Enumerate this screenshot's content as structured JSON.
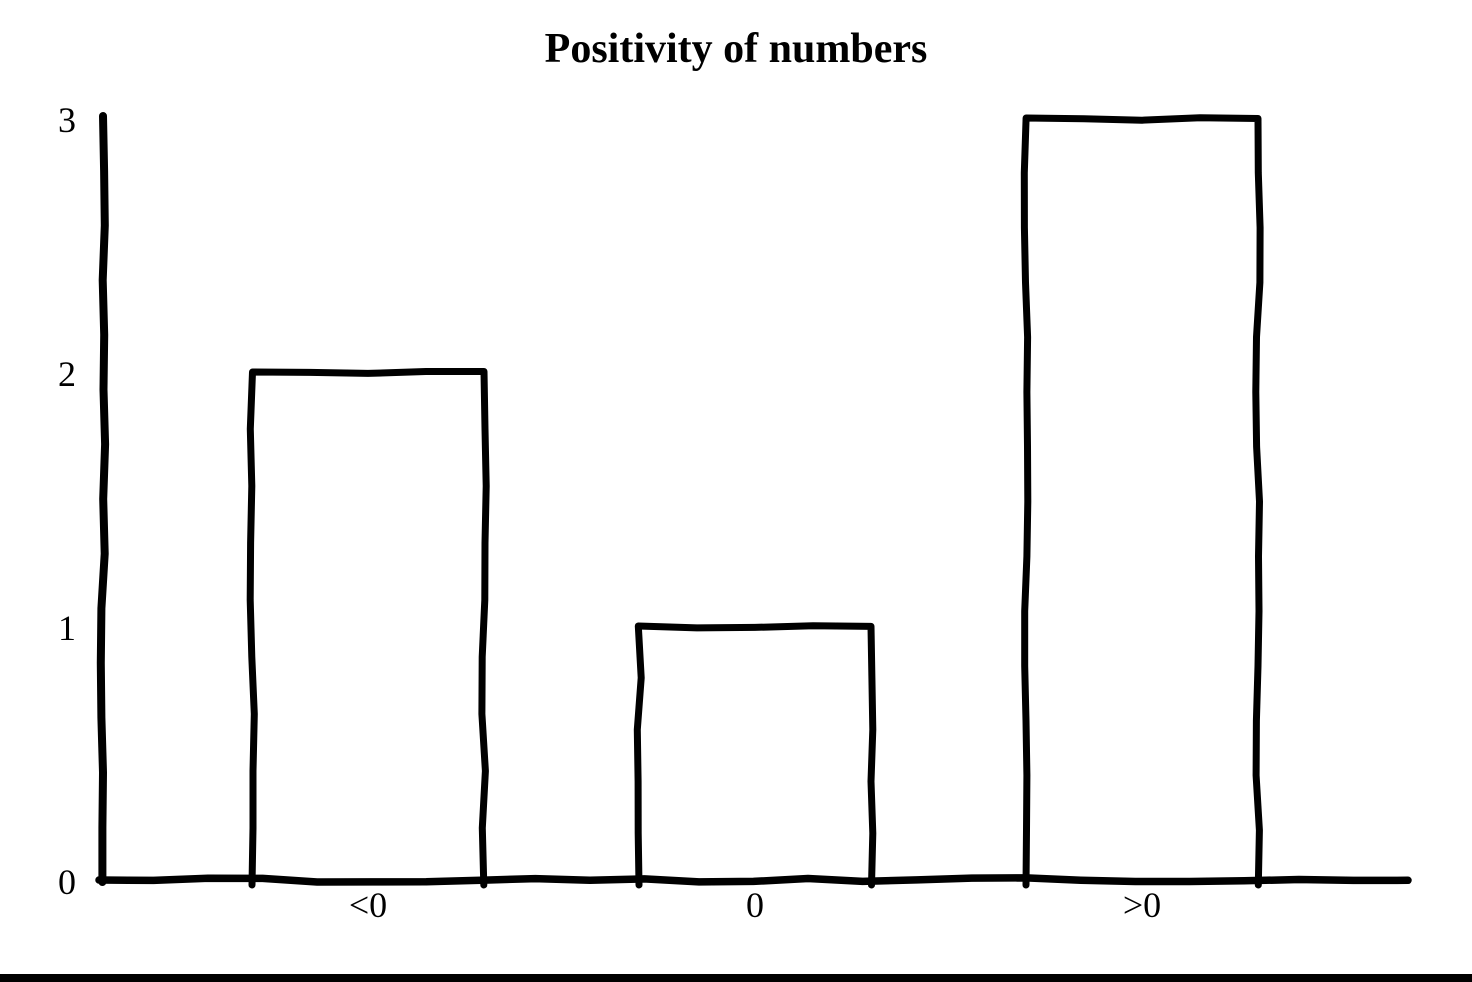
{
  "page": {
    "background": "#ffffff",
    "ink": "#000000"
  },
  "chart_data": {
    "type": "bar",
    "title": "Positivity of numbers",
    "categories": [
      "<0",
      "0",
      ">0"
    ],
    "values": [
      2,
      1,
      3
    ],
    "xlabel": "",
    "ylabel": "",
    "ylim": [
      0,
      3
    ],
    "yticks": [
      0,
      1,
      2,
      3
    ],
    "grid": false,
    "legend": "none",
    "style": "hand-drawn-sketch",
    "bar_fill": "#ffffff",
    "bar_stroke": "#000000",
    "axis_color": "#000000",
    "title_color": "#000000"
  },
  "footer": {
    "bottom_border_color": "#000000"
  }
}
